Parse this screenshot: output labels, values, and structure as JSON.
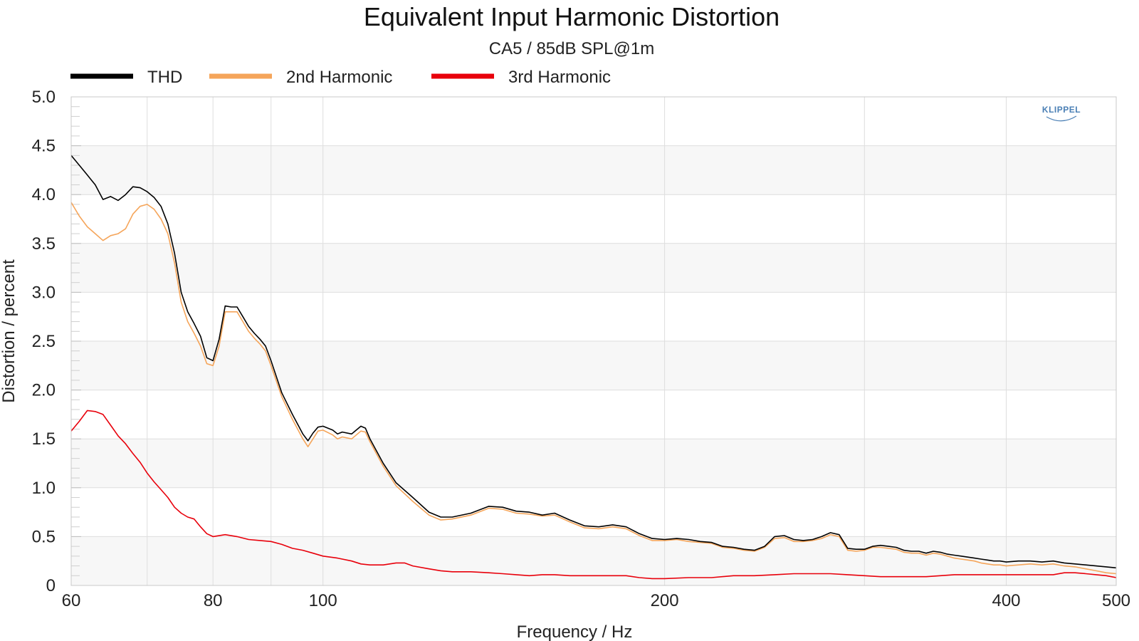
{
  "chart_data": {
    "type": "line",
    "title": "Equivalent Input Harmonic Distortion",
    "subtitle": "CA5 / 85dB SPL@1m",
    "xlabel": "Frequency / Hz",
    "ylabel": "Distortion / percent",
    "xscale": "log",
    "xlim": [
      60,
      500
    ],
    "ylim": [
      0,
      5
    ],
    "x_ticks": [
      60,
      80,
      100,
      200,
      400,
      500
    ],
    "x_tick_labels": [
      "60",
      "80",
      "100",
      "200",
      "400",
      "500"
    ],
    "y_ticks": [
      0,
      0.5,
      1,
      1.5,
      2,
      2.5,
      3,
      3.5,
      4,
      4.5,
      5
    ],
    "y_tick_labels": [
      "0",
      "0.5",
      "1.0",
      "1.5",
      "2.0",
      "2.5",
      "3.0",
      "3.5",
      "4.0",
      "4.5",
      "5.0"
    ],
    "grid": true,
    "legend_position": "top-left",
    "watermark": "KLIPPEL",
    "series": [
      {
        "name": "THD",
        "color": "#000000",
        "points": [
          [
            60,
            4.4
          ],
          [
            61,
            4.3
          ],
          [
            62,
            4.2
          ],
          [
            63,
            4.1
          ],
          [
            64,
            3.95
          ],
          [
            65,
            3.98
          ],
          [
            66,
            3.94
          ],
          [
            67,
            4.0
          ],
          [
            68,
            4.08
          ],
          [
            69,
            4.07
          ],
          [
            70,
            4.03
          ],
          [
            71,
            3.97
          ],
          [
            72,
            3.88
          ],
          [
            73,
            3.7
          ],
          [
            74,
            3.4
          ],
          [
            75,
            3.0
          ],
          [
            76,
            2.8
          ],
          [
            77,
            2.68
          ],
          [
            78,
            2.55
          ],
          [
            79,
            2.33
          ],
          [
            80,
            2.3
          ],
          [
            81,
            2.52
          ],
          [
            82,
            2.86
          ],
          [
            83,
            2.85
          ],
          [
            84,
            2.85
          ],
          [
            85,
            2.75
          ],
          [
            86,
            2.65
          ],
          [
            87,
            2.58
          ],
          [
            88,
            2.52
          ],
          [
            89,
            2.45
          ],
          [
            90,
            2.3
          ],
          [
            92,
            1.97
          ],
          [
            94,
            1.75
          ],
          [
            96,
            1.55
          ],
          [
            97,
            1.48
          ],
          [
            98,
            1.56
          ],
          [
            99,
            1.62
          ],
          [
            100,
            1.63
          ],
          [
            102,
            1.59
          ],
          [
            103,
            1.55
          ],
          [
            104,
            1.57
          ],
          [
            106,
            1.55
          ],
          [
            108,
            1.63
          ],
          [
            109,
            1.61
          ],
          [
            110,
            1.5
          ],
          [
            113,
            1.25
          ],
          [
            116,
            1.05
          ],
          [
            120,
            0.9
          ],
          [
            124,
            0.75
          ],
          [
            127,
            0.7
          ],
          [
            130,
            0.7
          ],
          [
            135,
            0.74
          ],
          [
            140,
            0.81
          ],
          [
            144,
            0.8
          ],
          [
            148,
            0.76
          ],
          [
            152,
            0.75
          ],
          [
            156,
            0.72
          ],
          [
            160,
            0.74
          ],
          [
            165,
            0.67
          ],
          [
            170,
            0.61
          ],
          [
            175,
            0.6
          ],
          [
            180,
            0.62
          ],
          [
            185,
            0.6
          ],
          [
            190,
            0.53
          ],
          [
            195,
            0.48
          ],
          [
            200,
            0.47
          ],
          [
            205,
            0.48
          ],
          [
            210,
            0.47
          ],
          [
            215,
            0.45
          ],
          [
            220,
            0.44
          ],
          [
            225,
            0.4
          ],
          [
            230,
            0.39
          ],
          [
            235,
            0.37
          ],
          [
            240,
            0.36
          ],
          [
            245,
            0.4
          ],
          [
            250,
            0.5
          ],
          [
            255,
            0.51
          ],
          [
            260,
            0.47
          ],
          [
            265,
            0.46
          ],
          [
            270,
            0.47
          ],
          [
            275,
            0.5
          ],
          [
            280,
            0.54
          ],
          [
            285,
            0.52
          ],
          [
            290,
            0.38
          ],
          [
            295,
            0.37
          ],
          [
            300,
            0.37
          ],
          [
            305,
            0.4
          ],
          [
            310,
            0.41
          ],
          [
            315,
            0.4
          ],
          [
            320,
            0.39
          ],
          [
            325,
            0.36
          ],
          [
            330,
            0.35
          ],
          [
            335,
            0.35
          ],
          [
            340,
            0.33
          ],
          [
            345,
            0.35
          ],
          [
            350,
            0.34
          ],
          [
            355,
            0.32
          ],
          [
            360,
            0.31
          ],
          [
            365,
            0.3
          ],
          [
            370,
            0.29
          ],
          [
            375,
            0.28
          ],
          [
            380,
            0.27
          ],
          [
            385,
            0.26
          ],
          [
            390,
            0.25
          ],
          [
            395,
            0.25
          ],
          [
            400,
            0.24
          ],
          [
            410,
            0.25
          ],
          [
            420,
            0.25
          ],
          [
            430,
            0.24
          ],
          [
            440,
            0.25
          ],
          [
            450,
            0.23
          ],
          [
            460,
            0.22
          ],
          [
            470,
            0.21
          ],
          [
            480,
            0.2
          ],
          [
            490,
            0.19
          ],
          [
            500,
            0.18
          ]
        ]
      },
      {
        "name": "2nd Harmonic",
        "color": "#f5a55a",
        "points": [
          [
            60,
            3.92
          ],
          [
            61,
            3.78
          ],
          [
            62,
            3.67
          ],
          [
            63,
            3.6
          ],
          [
            64,
            3.53
          ],
          [
            65,
            3.58
          ],
          [
            66,
            3.6
          ],
          [
            67,
            3.65
          ],
          [
            68,
            3.8
          ],
          [
            69,
            3.88
          ],
          [
            70,
            3.9
          ],
          [
            71,
            3.85
          ],
          [
            72,
            3.75
          ],
          [
            73,
            3.6
          ],
          [
            74,
            3.3
          ],
          [
            75,
            2.9
          ],
          [
            76,
            2.7
          ],
          [
            77,
            2.58
          ],
          [
            78,
            2.45
          ],
          [
            79,
            2.27
          ],
          [
            80,
            2.25
          ],
          [
            81,
            2.45
          ],
          [
            82,
            2.8
          ],
          [
            83,
            2.8
          ],
          [
            84,
            2.8
          ],
          [
            85,
            2.7
          ],
          [
            86,
            2.6
          ],
          [
            87,
            2.53
          ],
          [
            88,
            2.47
          ],
          [
            89,
            2.4
          ],
          [
            90,
            2.25
          ],
          [
            92,
            1.93
          ],
          [
            94,
            1.7
          ],
          [
            96,
            1.5
          ],
          [
            97,
            1.42
          ],
          [
            98,
            1.5
          ],
          [
            99,
            1.58
          ],
          [
            100,
            1.59
          ],
          [
            102,
            1.54
          ],
          [
            103,
            1.5
          ],
          [
            104,
            1.52
          ],
          [
            106,
            1.5
          ],
          [
            108,
            1.58
          ],
          [
            109,
            1.57
          ],
          [
            110,
            1.47
          ],
          [
            113,
            1.22
          ],
          [
            116,
            1.02
          ],
          [
            120,
            0.86
          ],
          [
            124,
            0.72
          ],
          [
            127,
            0.67
          ],
          [
            130,
            0.68
          ],
          [
            135,
            0.72
          ],
          [
            140,
            0.79
          ],
          [
            144,
            0.78
          ],
          [
            148,
            0.74
          ],
          [
            152,
            0.73
          ],
          [
            156,
            0.71
          ],
          [
            160,
            0.72
          ],
          [
            165,
            0.65
          ],
          [
            170,
            0.59
          ],
          [
            175,
            0.58
          ],
          [
            180,
            0.6
          ],
          [
            185,
            0.58
          ],
          [
            190,
            0.51
          ],
          [
            195,
            0.46
          ],
          [
            200,
            0.46
          ],
          [
            205,
            0.47
          ],
          [
            210,
            0.45
          ],
          [
            215,
            0.44
          ],
          [
            220,
            0.43
          ],
          [
            225,
            0.39
          ],
          [
            230,
            0.38
          ],
          [
            235,
            0.36
          ],
          [
            240,
            0.35
          ],
          [
            245,
            0.39
          ],
          [
            250,
            0.48
          ],
          [
            255,
            0.49
          ],
          [
            260,
            0.45
          ],
          [
            265,
            0.45
          ],
          [
            270,
            0.46
          ],
          [
            275,
            0.48
          ],
          [
            280,
            0.52
          ],
          [
            285,
            0.5
          ],
          [
            290,
            0.36
          ],
          [
            295,
            0.35
          ],
          [
            300,
            0.36
          ],
          [
            305,
            0.39
          ],
          [
            310,
            0.39
          ],
          [
            315,
            0.38
          ],
          [
            320,
            0.37
          ],
          [
            325,
            0.34
          ],
          [
            330,
            0.33
          ],
          [
            335,
            0.33
          ],
          [
            340,
            0.31
          ],
          [
            345,
            0.33
          ],
          [
            350,
            0.32
          ],
          [
            355,
            0.3
          ],
          [
            360,
            0.28
          ],
          [
            365,
            0.27
          ],
          [
            370,
            0.26
          ],
          [
            375,
            0.25
          ],
          [
            380,
            0.23
          ],
          [
            385,
            0.22
          ],
          [
            390,
            0.21
          ],
          [
            395,
            0.21
          ],
          [
            400,
            0.2
          ],
          [
            410,
            0.21
          ],
          [
            420,
            0.22
          ],
          [
            430,
            0.21
          ],
          [
            440,
            0.22
          ],
          [
            450,
            0.2
          ],
          [
            460,
            0.19
          ],
          [
            470,
            0.17
          ],
          [
            480,
            0.15
          ],
          [
            490,
            0.13
          ],
          [
            500,
            0.12
          ]
        ]
      },
      {
        "name": "3rd Harmonic",
        "color": "#e8000b",
        "points": [
          [
            60,
            1.58
          ],
          [
            61,
            1.68
          ],
          [
            62,
            1.79
          ],
          [
            63,
            1.78
          ],
          [
            64,
            1.75
          ],
          [
            65,
            1.64
          ],
          [
            66,
            1.53
          ],
          [
            67,
            1.45
          ],
          [
            68,
            1.35
          ],
          [
            69,
            1.26
          ],
          [
            70,
            1.15
          ],
          [
            71,
            1.06
          ],
          [
            72,
            0.98
          ],
          [
            73,
            0.9
          ],
          [
            74,
            0.8
          ],
          [
            75,
            0.74
          ],
          [
            76,
            0.7
          ],
          [
            77,
            0.68
          ],
          [
            78,
            0.6
          ],
          [
            79,
            0.53
          ],
          [
            80,
            0.5
          ],
          [
            82,
            0.52
          ],
          [
            84,
            0.5
          ],
          [
            86,
            0.47
          ],
          [
            88,
            0.46
          ],
          [
            90,
            0.45
          ],
          [
            92,
            0.42
          ],
          [
            94,
            0.38
          ],
          [
            96,
            0.36
          ],
          [
            98,
            0.33
          ],
          [
            100,
            0.3
          ],
          [
            103,
            0.28
          ],
          [
            106,
            0.25
          ],
          [
            108,
            0.22
          ],
          [
            110,
            0.21
          ],
          [
            113,
            0.21
          ],
          [
            116,
            0.23
          ],
          [
            118,
            0.23
          ],
          [
            120,
            0.2
          ],
          [
            124,
            0.17
          ],
          [
            127,
            0.15
          ],
          [
            130,
            0.14
          ],
          [
            135,
            0.14
          ],
          [
            140,
            0.13
          ],
          [
            144,
            0.12
          ],
          [
            148,
            0.11
          ],
          [
            152,
            0.1
          ],
          [
            156,
            0.11
          ],
          [
            160,
            0.11
          ],
          [
            165,
            0.1
          ],
          [
            170,
            0.1
          ],
          [
            175,
            0.1
          ],
          [
            180,
            0.1
          ],
          [
            185,
            0.1
          ],
          [
            190,
            0.08
          ],
          [
            195,
            0.07
          ],
          [
            200,
            0.07
          ],
          [
            210,
            0.08
          ],
          [
            220,
            0.08
          ],
          [
            230,
            0.1
          ],
          [
            240,
            0.1
          ],
          [
            250,
            0.11
          ],
          [
            260,
            0.12
          ],
          [
            270,
            0.12
          ],
          [
            280,
            0.12
          ],
          [
            290,
            0.11
          ],
          [
            300,
            0.1
          ],
          [
            310,
            0.09
          ],
          [
            320,
            0.09
          ],
          [
            330,
            0.09
          ],
          [
            340,
            0.09
          ],
          [
            350,
            0.1
          ],
          [
            360,
            0.11
          ],
          [
            370,
            0.11
          ],
          [
            380,
            0.11
          ],
          [
            390,
            0.11
          ],
          [
            400,
            0.11
          ],
          [
            410,
            0.11
          ],
          [
            420,
            0.11
          ],
          [
            430,
            0.11
          ],
          [
            440,
            0.11
          ],
          [
            450,
            0.13
          ],
          [
            460,
            0.13
          ],
          [
            470,
            0.12
          ],
          [
            480,
            0.11
          ],
          [
            490,
            0.1
          ],
          [
            500,
            0.08
          ]
        ]
      }
    ]
  }
}
